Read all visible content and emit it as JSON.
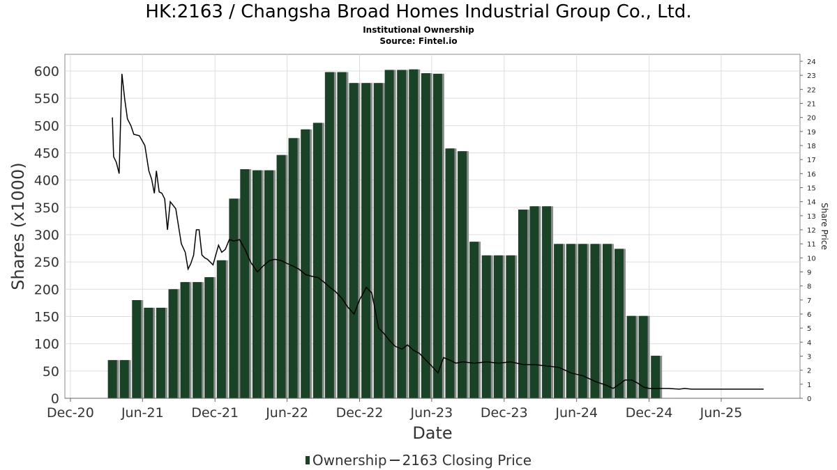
{
  "title": "HK:2163 / Changsha Broad Homes Industrial Group Co., Ltd.",
  "subtitle": "Institutional Ownership",
  "source": "Source: Fintel.io",
  "legend": {
    "ownership": "Ownership",
    "price": "2163 Closing Price"
  },
  "colors": {
    "bar": "#1a4226",
    "bar_shadow": "#8c8c8c",
    "line": "#000000",
    "grid": "#dddddd"
  },
  "chart_data": {
    "type": "bar",
    "xlabel": "Date",
    "ylabel": "Shares (x1000)",
    "y2label": "Share Price",
    "x_ticks": [
      "Dec-20",
      "Jun-21",
      "Dec-21",
      "Jun-22",
      "Dec-22",
      "Jun-23",
      "Dec-23",
      "Jun-24",
      "Dec-24",
      "Jun-25"
    ],
    "x_range": [
      "2020-12-01",
      "2025-12-31"
    ],
    "ylim": [
      0,
      610
    ],
    "y_ticks": [
      0,
      50,
      100,
      150,
      200,
      250,
      300,
      350,
      400,
      450,
      500,
      550,
      600
    ],
    "y2lim": [
      0,
      24.4
    ],
    "y2_ticks": [
      0,
      1,
      2,
      3,
      4,
      5,
      6,
      7,
      8,
      9,
      10,
      11,
      12,
      13,
      14,
      15,
      16,
      17,
      18,
      19,
      20,
      21,
      22,
      23,
      24
    ],
    "grid": true,
    "legend_position": "bottom",
    "series": [
      {
        "name": "Ownership",
        "type": "bar",
        "points": [
          [
            "2021-03-31",
            70
          ],
          [
            "2021-04-30",
            70
          ],
          [
            "2021-05-31",
            180
          ],
          [
            "2021-06-30",
            166
          ],
          [
            "2021-07-31",
            166
          ],
          [
            "2021-08-31",
            200
          ],
          [
            "2021-09-30",
            213
          ],
          [
            "2021-10-31",
            213
          ],
          [
            "2021-11-30",
            222
          ],
          [
            "2021-12-31",
            253
          ],
          [
            "2022-01-31",
            366
          ],
          [
            "2022-02-28",
            420
          ],
          [
            "2022-03-31",
            418
          ],
          [
            "2022-04-30",
            418
          ],
          [
            "2022-05-31",
            446
          ],
          [
            "2022-06-30",
            477
          ],
          [
            "2022-07-31",
            493
          ],
          [
            "2022-08-31",
            505
          ],
          [
            "2022-09-30",
            598
          ],
          [
            "2022-10-31",
            598
          ],
          [
            "2022-11-30",
            578
          ],
          [
            "2022-12-31",
            578
          ],
          [
            "2023-01-31",
            578
          ],
          [
            "2023-02-28",
            602
          ],
          [
            "2023-03-31",
            602
          ],
          [
            "2023-04-30",
            603
          ],
          [
            "2023-05-31",
            596
          ],
          [
            "2023-06-30",
            595
          ],
          [
            "2023-07-31",
            458
          ],
          [
            "2023-08-31",
            453
          ],
          [
            "2023-09-30",
            287
          ],
          [
            "2023-10-31",
            262
          ],
          [
            "2023-11-30",
            262
          ],
          [
            "2023-12-31",
            262
          ],
          [
            "2024-01-31",
            346
          ],
          [
            "2024-02-29",
            352
          ],
          [
            "2024-03-31",
            352
          ],
          [
            "2024-04-30",
            283
          ],
          [
            "2024-05-31",
            283
          ],
          [
            "2024-06-30",
            283
          ],
          [
            "2024-07-31",
            283
          ],
          [
            "2024-08-31",
            283
          ],
          [
            "2024-09-30",
            274
          ],
          [
            "2024-10-31",
            151
          ],
          [
            "2024-11-30",
            151
          ],
          [
            "2024-12-31",
            78
          ]
        ]
      },
      {
        "name": "2163 Closing Price",
        "type": "line",
        "points": [
          [
            "2021-03-31",
            20.0
          ],
          [
            "2021-04-03",
            17.2
          ],
          [
            "2021-04-10",
            16.8
          ],
          [
            "2021-04-17",
            16.0
          ],
          [
            "2021-04-24",
            23.1
          ],
          [
            "2021-05-01",
            21.3
          ],
          [
            "2021-05-08",
            19.9
          ],
          [
            "2021-05-17",
            19.4
          ],
          [
            "2021-05-24",
            18.8
          ],
          [
            "2021-06-07",
            18.7
          ],
          [
            "2021-06-21",
            18.0
          ],
          [
            "2021-07-01",
            16.2
          ],
          [
            "2021-07-08",
            15.6
          ],
          [
            "2021-07-15",
            14.6
          ],
          [
            "2021-07-20",
            16.2
          ],
          [
            "2021-07-27",
            14.7
          ],
          [
            "2021-08-03",
            14.6
          ],
          [
            "2021-08-10",
            14.2
          ],
          [
            "2021-08-17",
            12.0
          ],
          [
            "2021-08-24",
            14.0
          ],
          [
            "2021-09-07",
            13.5
          ],
          [
            "2021-09-21",
            11.0
          ],
          [
            "2021-10-01",
            10.4
          ],
          [
            "2021-10-08",
            9.2
          ],
          [
            "2021-10-15",
            9.6
          ],
          [
            "2021-10-22",
            10.2
          ],
          [
            "2021-10-29",
            12.0
          ],
          [
            "2021-11-05",
            12.0
          ],
          [
            "2021-11-12",
            10.2
          ],
          [
            "2021-11-19",
            10.0
          ],
          [
            "2021-11-26",
            9.9
          ],
          [
            "2021-12-10",
            9.5
          ],
          [
            "2021-12-24",
            10.9
          ],
          [
            "2022-01-01",
            10.4
          ],
          [
            "2022-01-10",
            10.6
          ],
          [
            "2022-01-20",
            11.3
          ],
          [
            "2022-02-01",
            11.2
          ],
          [
            "2022-02-15",
            11.3
          ],
          [
            "2022-03-01",
            10.6
          ],
          [
            "2022-03-15",
            9.7
          ],
          [
            "2022-04-01",
            9.0
          ],
          [
            "2022-04-15",
            9.4
          ],
          [
            "2022-05-01",
            9.8
          ],
          [
            "2022-05-15",
            9.9
          ],
          [
            "2022-06-01",
            9.8
          ],
          [
            "2022-06-15",
            9.6
          ],
          [
            "2022-07-01",
            9.4
          ],
          [
            "2022-07-15",
            9.2
          ],
          [
            "2022-08-01",
            8.8
          ],
          [
            "2022-08-15",
            8.7
          ],
          [
            "2022-09-01",
            8.6
          ],
          [
            "2022-09-15",
            8.3
          ],
          [
            "2022-10-01",
            7.9
          ],
          [
            "2022-10-15",
            7.6
          ],
          [
            "2022-11-01",
            7.1
          ],
          [
            "2022-11-15",
            6.5
          ],
          [
            "2022-12-01",
            6.0
          ],
          [
            "2022-12-15",
            7.0
          ],
          [
            "2023-01-01",
            7.9
          ],
          [
            "2023-01-15",
            7.5
          ],
          [
            "2023-02-01",
            5.0
          ],
          [
            "2023-02-15",
            4.6
          ],
          [
            "2023-03-01",
            4.1
          ],
          [
            "2023-03-15",
            3.7
          ],
          [
            "2023-04-01",
            3.5
          ],
          [
            "2023-04-15",
            3.8
          ],
          [
            "2023-05-01",
            3.4
          ],
          [
            "2023-05-15",
            3.2
          ],
          [
            "2023-06-01",
            2.7
          ],
          [
            "2023-06-15",
            2.3
          ],
          [
            "2023-07-01",
            1.8
          ],
          [
            "2023-07-15",
            2.9
          ],
          [
            "2023-08-01",
            2.7
          ],
          [
            "2023-08-15",
            2.5
          ],
          [
            "2023-09-01",
            2.6
          ],
          [
            "2023-10-01",
            2.5
          ],
          [
            "2023-11-01",
            2.6
          ],
          [
            "2023-12-01",
            2.5
          ],
          [
            "2024-01-01",
            2.6
          ],
          [
            "2024-02-01",
            2.4
          ],
          [
            "2024-03-01",
            2.4
          ],
          [
            "2024-04-01",
            2.3
          ],
          [
            "2024-05-01",
            2.2
          ],
          [
            "2024-06-01",
            1.8
          ],
          [
            "2024-07-01",
            1.6
          ],
          [
            "2024-08-01",
            1.2
          ],
          [
            "2024-09-01",
            0.9
          ],
          [
            "2024-09-15",
            0.7
          ],
          [
            "2024-10-01",
            1.0
          ],
          [
            "2024-10-15",
            1.3
          ],
          [
            "2024-11-01",
            1.3
          ],
          [
            "2024-11-15",
            1.1
          ],
          [
            "2024-12-01",
            0.8
          ],
          [
            "2024-12-15",
            0.7
          ],
          [
            "2025-01-01",
            0.7
          ],
          [
            "2025-01-15",
            0.7
          ],
          [
            "2025-02-01",
            0.7
          ],
          [
            "2025-03-01",
            0.65
          ],
          [
            "2025-03-15",
            0.7
          ],
          [
            "2025-04-01",
            0.65
          ],
          [
            "2025-05-01",
            0.65
          ],
          [
            "2025-06-01",
            0.65
          ],
          [
            "2025-07-01",
            0.65
          ],
          [
            "2025-08-01",
            0.65
          ],
          [
            "2025-09-01",
            0.65
          ],
          [
            "2025-09-30",
            0.65
          ]
        ]
      }
    ]
  }
}
